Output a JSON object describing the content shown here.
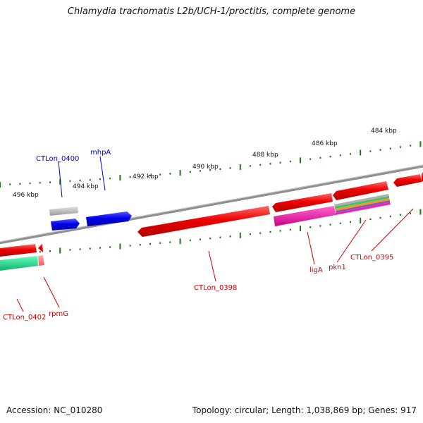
{
  "title": "Chlamydia trachomatis L2b/UCH-1/proctitis, complete genome",
  "footer": {
    "accession": "Accession: NC_010280",
    "summary": "Topology: circular; Length: 1,038,869 bp; Genes: 917"
  },
  "ruler": {
    "labels": [
      "496 kbp",
      "494 kbp",
      "492 kbp",
      "490 kbp",
      "488 kbp",
      "486 kbp",
      "484 kbp"
    ]
  },
  "genes": {
    "forward": [
      {
        "label": "CTLon_0400",
        "color": "#0000cc"
      },
      {
        "label": "mhpA",
        "color": "#0000cc"
      }
    ],
    "reverse": [
      {
        "label": "CTLon_0402",
        "color": "#cc0000"
      },
      {
        "label": "rpmG",
        "color": "#cc0000"
      },
      {
        "label": "CTLon_0398",
        "color": "#cc0000"
      },
      {
        "label": "ligA",
        "color": "#cc0000"
      },
      {
        "label": "pkn1",
        "color": "#cc0000"
      },
      {
        "label": "CTLon_0395",
        "color": "#cc0000"
      }
    ]
  },
  "colors": {
    "backbone": "#888888",
    "tick": "#1a7a1a",
    "cds_reverse": "#ee0000",
    "cds_forward": "#0000ee",
    "cog_teal": "#20d890",
    "cog_magenta": "#ee22aa",
    "cog_grey": "#b0b0b0"
  }
}
